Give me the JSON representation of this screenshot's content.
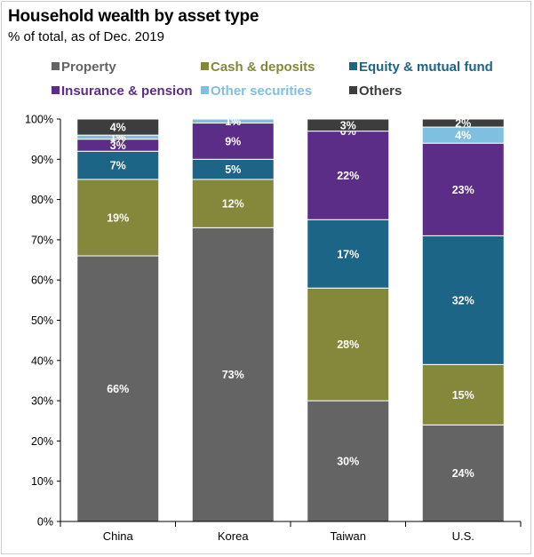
{
  "header": {
    "title": "Household wealth by asset type",
    "subtitle": "% of total, as of Dec. 2019"
  },
  "chart_data": {
    "type": "bar",
    "stacked": true,
    "title": "Household wealth by asset type",
    "subtitle": "% of total, as of Dec. 2019",
    "xlabel": "",
    "ylabel": "",
    "ylim": [
      0,
      100
    ],
    "yticks": [
      "0%",
      "10%",
      "20%",
      "30%",
      "40%",
      "50%",
      "60%",
      "70%",
      "80%",
      "90%",
      "100%"
    ],
    "grid": false,
    "legend_position": "top",
    "categories": [
      "China",
      "Korea",
      "Taiwan",
      "U.S."
    ],
    "series": [
      {
        "name": "Property",
        "color": "#646464",
        "legend_text_color": "#646464",
        "values": [
          66,
          73,
          30,
          24
        ],
        "labels": [
          "66%",
          "73%",
          "30%",
          "24%"
        ]
      },
      {
        "name": "Cash & deposits",
        "color": "#83883a",
        "legend_text_color": "#83883a",
        "values": [
          19,
          12,
          28,
          15
        ],
        "labels": [
          "19%",
          "12%",
          "28%",
          "15%"
        ]
      },
      {
        "name": "Equity & mutual fund",
        "color": "#1d6586",
        "legend_text_color": "#1d6586",
        "values": [
          7,
          5,
          17,
          32
        ],
        "labels": [
          "7%",
          "5%",
          "17%",
          "32%"
        ]
      },
      {
        "name": "Insurance & pension",
        "color": "#5c2d86",
        "legend_text_color": "#5c2d86",
        "values": [
          3,
          9,
          22,
          23
        ],
        "labels": [
          "3%",
          "9%",
          "22%",
          "23%"
        ]
      },
      {
        "name": "Other securities",
        "color": "#7fc0e0",
        "legend_text_color": "#7fc0e0",
        "values": [
          1,
          1,
          0,
          4
        ],
        "labels": [
          "1%",
          "1%",
          "0%",
          "4%"
        ]
      },
      {
        "name": "Others",
        "color": "#3d3d3d",
        "legend_text_color": "#3d3d3d",
        "values": [
          4,
          0,
          3,
          2
        ],
        "labels": [
          "4%",
          "",
          "3%",
          "2%"
        ]
      }
    ]
  }
}
